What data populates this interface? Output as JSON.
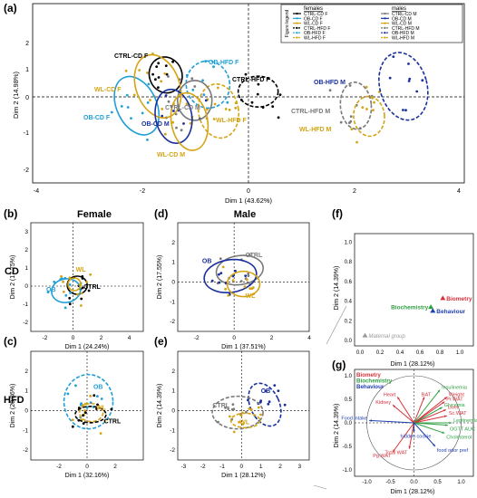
{
  "colors": {
    "ctrl": "#000000",
    "ob": "#1f9fd6",
    "wl": "#d4a414",
    "ob_m": "#1a2f9e",
    "ctrl_m": "#7a7a7a",
    "red": "#d6303a",
    "green": "#2ea043",
    "blue": "#1f3fae",
    "grey": "#9a9a9a"
  },
  "panel_a": {
    "letter": "(a)",
    "xlabel": "Dim 1 (43.62%)",
    "ylabel": "Dim 2 (14.98%)",
    "xticks": [
      "-4",
      "-2",
      "0",
      "2",
      "4"
    ],
    "yticks": [
      "2",
      "1",
      "0",
      "-1",
      "-2"
    ],
    "legend": {
      "title": "Figure legend",
      "females_title": "females",
      "males_title": "males",
      "females": [
        "CTRL-CD F",
        "OB-CD F",
        "WL-CD F",
        "CTRL-HFD F",
        "OB-HFD F",
        "WL-HFD F"
      ],
      "males": [
        "CTRL-CD M",
        "OB-CD M",
        "WL-CD M",
        "CTRL-HFD M",
        "OB-HFD M",
        "WL-HFD M"
      ]
    },
    "labels": [
      "CTRL-CD F",
      "OB-HFD F",
      "WL-CD F",
      "CTRL-HFD F",
      "OB-HFD M",
      "OB-CD F",
      "OB-CD M",
      "CTRL-CD M",
      "WL-HFD F",
      "CTRL-HFD M",
      "WL-CD M",
      "WL-HFD M"
    ]
  },
  "panel_b": {
    "letter": "(b)",
    "title": "Female",
    "row": "CD",
    "xlabel": "Dim 1 (24.24%)",
    "ylabel": "Dim 2 (17.75%)",
    "xticks": [
      "-2",
      "0",
      "2",
      "4"
    ],
    "yticks": [
      "3",
      "2",
      "1",
      "0",
      "-1",
      "-2"
    ],
    "labels": [
      "WL",
      "OB",
      "CTRL"
    ]
  },
  "panel_d": {
    "letter": "(d)",
    "title": "Male",
    "xlabel": "Dim 1 (37.51%)",
    "ylabel": "Dim 2 (17.55%)",
    "xticks": [
      "-2",
      "0",
      "2",
      "4"
    ],
    "yticks": [
      "2",
      "1",
      "0",
      "-1",
      "-2"
    ],
    "labels": [
      "OB",
      "CTRL",
      "WL"
    ]
  },
  "panel_c": {
    "letter": "(c)",
    "row": "HFD",
    "xlabel": "Dim 1 (32.16%)",
    "ylabel": "Dim 2 (20.36%)",
    "xticks": [
      "-2",
      "0",
      "2"
    ],
    "yticks": [
      "2",
      "1",
      "0",
      "-1",
      "-2"
    ],
    "labels": [
      "OB",
      "WL",
      "CTRL"
    ]
  },
  "panel_e": {
    "letter": "(e)",
    "xlabel": "Dim 1 (28.12%)",
    "ylabel": "Dim 2 (14.39%)",
    "xticks": [
      "-3",
      "-2",
      "-1",
      "0",
      "1",
      "2",
      "3"
    ],
    "yticks": [
      "2",
      "1",
      "0",
      "-1",
      "-2"
    ],
    "labels": [
      "OB",
      "CTRL",
      "WL"
    ]
  },
  "panel_f": {
    "letter": "(f)",
    "xlabel": "Dim 1 (28.12%)",
    "ylabel": "Dim 2 (14.39%)",
    "xticks": [
      "0.0",
      "0.2",
      "0.4",
      "0.6",
      "0.8",
      "1.0"
    ],
    "yticks": [
      "1.0",
      "0.8",
      "0.6",
      "0.4",
      "0.2",
      "0.0"
    ],
    "labels": [
      "Biometry",
      "Biochemistry",
      "Behaviour",
      "Maternal group"
    ]
  },
  "panel_g": {
    "letter": "(g)",
    "xlabel": "Dim 1 (28.12%)",
    "ylabel": "Dim 2 (14.39%)",
    "xticks": [
      "-1.0",
      "-0.5",
      "0.0",
      "0.5",
      "1.0"
    ],
    "yticks": [
      "1.0",
      "0.5",
      "0.0",
      "-0.5",
      "-1.0"
    ],
    "legend": [
      "Biometry",
      "Biochemistry",
      "Behaviour"
    ],
    "labels": [
      "Heart",
      "Kidney",
      "BAT",
      "Weight",
      "Insulinemia",
      "Pr.WAT",
      "Glycemia",
      "Liver",
      "Sc.WAT",
      "Leptinemia",
      "OGTT AUC",
      "Cholesterol",
      "Total WAT",
      "Pg.WAT",
      "Food intake",
      "hidden cookie",
      "food odor pref"
    ]
  },
  "chart_data": [
    {
      "type": "scatter",
      "panel": "(a)",
      "xlabel": "Dim 1 (43.62%)",
      "ylabel": "Dim 2 (14.98%)",
      "xlim": [
        -4,
        4.3
      ],
      "ylim": [
        -2.5,
        2.5
      ],
      "series": [
        {
          "name": "CTRL-CD F",
          "center": [
            -1.55,
            0.62
          ]
        },
        {
          "name": "OB-CD F",
          "center": [
            -2.1,
            -0.25
          ]
        },
        {
          "name": "WL-CD F",
          "center": [
            -1.7,
            0.3
          ]
        },
        {
          "name": "CTRL-HFD F",
          "center": [
            0.2,
            0.15
          ]
        },
        {
          "name": "OB-HFD F",
          "center": [
            -0.75,
            0.35
          ]
        },
        {
          "name": "WL-HFD F",
          "center": [
            -0.55,
            -0.4
          ]
        },
        {
          "name": "CTRL-CD M",
          "center": [
            -1.0,
            -0.1
          ]
        },
        {
          "name": "OB-CD M",
          "center": [
            -1.4,
            -0.55
          ]
        },
        {
          "name": "WL-CD M",
          "center": [
            -1.1,
            -0.7
          ]
        },
        {
          "name": "CTRL-HFD M",
          "center": [
            2.05,
            -0.25
          ]
        },
        {
          "name": "OB-HFD M",
          "center": [
            2.95,
            0.3
          ]
        },
        {
          "name": "WL-HFD M",
          "center": [
            2.3,
            -0.55
          ]
        }
      ]
    },
    {
      "type": "scatter",
      "panel": "(b)",
      "xlabel": "Dim 1 (24.24%)",
      "ylabel": "Dim 2 (17.75%)",
      "xlim": [
        -3,
        5
      ],
      "ylim": [
        -2.5,
        3.5
      ],
      "series": [
        {
          "name": "CTRL",
          "center": [
            0.3,
            0.05
          ]
        },
        {
          "name": "OB",
          "center": [
            -0.5,
            -0.25
          ]
        },
        {
          "name": "WL",
          "center": [
            0.1,
            0.1
          ]
        }
      ]
    },
    {
      "type": "scatter",
      "panel": "(d)",
      "xlabel": "Dim 1 (37.51%)",
      "ylabel": "Dim 2 (17.55%)",
      "xlim": [
        -3,
        4
      ],
      "ylim": [
        -2.5,
        3
      ],
      "series": [
        {
          "name": "CTRL",
          "center": [
            0.3,
            0.6
          ]
        },
        {
          "name": "OB",
          "center": [
            -0.2,
            0.3
          ]
        },
        {
          "name": "WL",
          "center": [
            0.5,
            -0.1
          ]
        }
      ]
    },
    {
      "type": "scatter",
      "panel": "(c)",
      "xlabel": "Dim 1 (32.16%)",
      "ylabel": "Dim 2 (20.36%)",
      "xlim": [
        -4,
        4
      ],
      "ylim": [
        -2.5,
        3
      ],
      "series": [
        {
          "name": "OB",
          "center": [
            0.1,
            0.45
          ]
        },
        {
          "name": "WL",
          "center": [
            0.3,
            -0.1
          ]
        },
        {
          "name": "CTRL",
          "center": [
            0.25,
            -0.2
          ]
        }
      ]
    },
    {
      "type": "scatter",
      "panel": "(e)",
      "xlabel": "Dim 1 (28.12%)",
      "ylabel": "Dim 2 (14.39%)",
      "xlim": [
        -3.3,
        3.5
      ],
      "ylim": [
        -2.5,
        3
      ],
      "series": [
        {
          "name": "OB",
          "center": [
            1.2,
            0.3
          ]
        },
        {
          "name": "CTRL",
          "center": [
            -0.2,
            -0.1
          ]
        },
        {
          "name": "WL",
          "center": [
            0.2,
            -0.5
          ]
        }
      ]
    },
    {
      "type": "scatter",
      "panel": "(f)",
      "xlabel": "Dim 1 (28.12%)",
      "ylabel": "Dim 2 (14.39%)",
      "xlim": [
        0,
        1.1
      ],
      "ylim": [
        0,
        1.05
      ],
      "series": [
        {
          "name": "Biometry",
          "x": 0.83,
          "y": 0.43
        },
        {
          "name": "Biochemistry",
          "x": 0.71,
          "y": 0.34
        },
        {
          "name": "Behaviour",
          "x": 0.73,
          "y": 0.3
        },
        {
          "name": "Maternal group",
          "x": 0.05,
          "y": 0.05
        }
      ]
    },
    {
      "type": "scatter",
      "panel": "(g)",
      "xlabel": "Dim 1 (28.12%)",
      "ylabel": "Dim 2 (14.39%)",
      "xlim": [
        -1.15,
        1.15
      ],
      "ylim": [
        -1.15,
        1.15
      ],
      "series": [
        {
          "name": "Heart",
          "x": -0.35,
          "y": 0.55
        },
        {
          "name": "Kidney",
          "x": -0.45,
          "y": 0.38
        },
        {
          "name": "BAT",
          "x": 0.22,
          "y": 0.55
        },
        {
          "name": "Weight",
          "x": 0.7,
          "y": 0.55
        },
        {
          "name": "Insulinemia",
          "x": 0.55,
          "y": 0.7
        },
        {
          "name": "Pr.WAT",
          "x": 0.65,
          "y": 0.45
        },
        {
          "name": "Glycemia",
          "x": 0.6,
          "y": 0.33
        },
        {
          "name": "Liver",
          "x": 0.68,
          "y": 0.28
        },
        {
          "name": "Sc.WAT",
          "x": 0.7,
          "y": 0.15
        },
        {
          "name": "Leptinemia",
          "x": 0.8,
          "y": 0.0
        },
        {
          "name": "OGTT AUC",
          "x": 0.72,
          "y": -0.05
        },
        {
          "name": "Cholesterol",
          "x": 0.65,
          "y": -0.22
        },
        {
          "name": "Total WAT",
          "x": -0.1,
          "y": -0.55
        },
        {
          "name": "Pg.WAT",
          "x": -0.45,
          "y": -0.62
        },
        {
          "name": "Food intake",
          "x": -0.95,
          "y": 0.05
        },
        {
          "name": "hidden cookie",
          "x": 0.0,
          "y": -0.2
        },
        {
          "name": "food odor pref",
          "x": 0.45,
          "y": -0.5
        }
      ]
    }
  ]
}
